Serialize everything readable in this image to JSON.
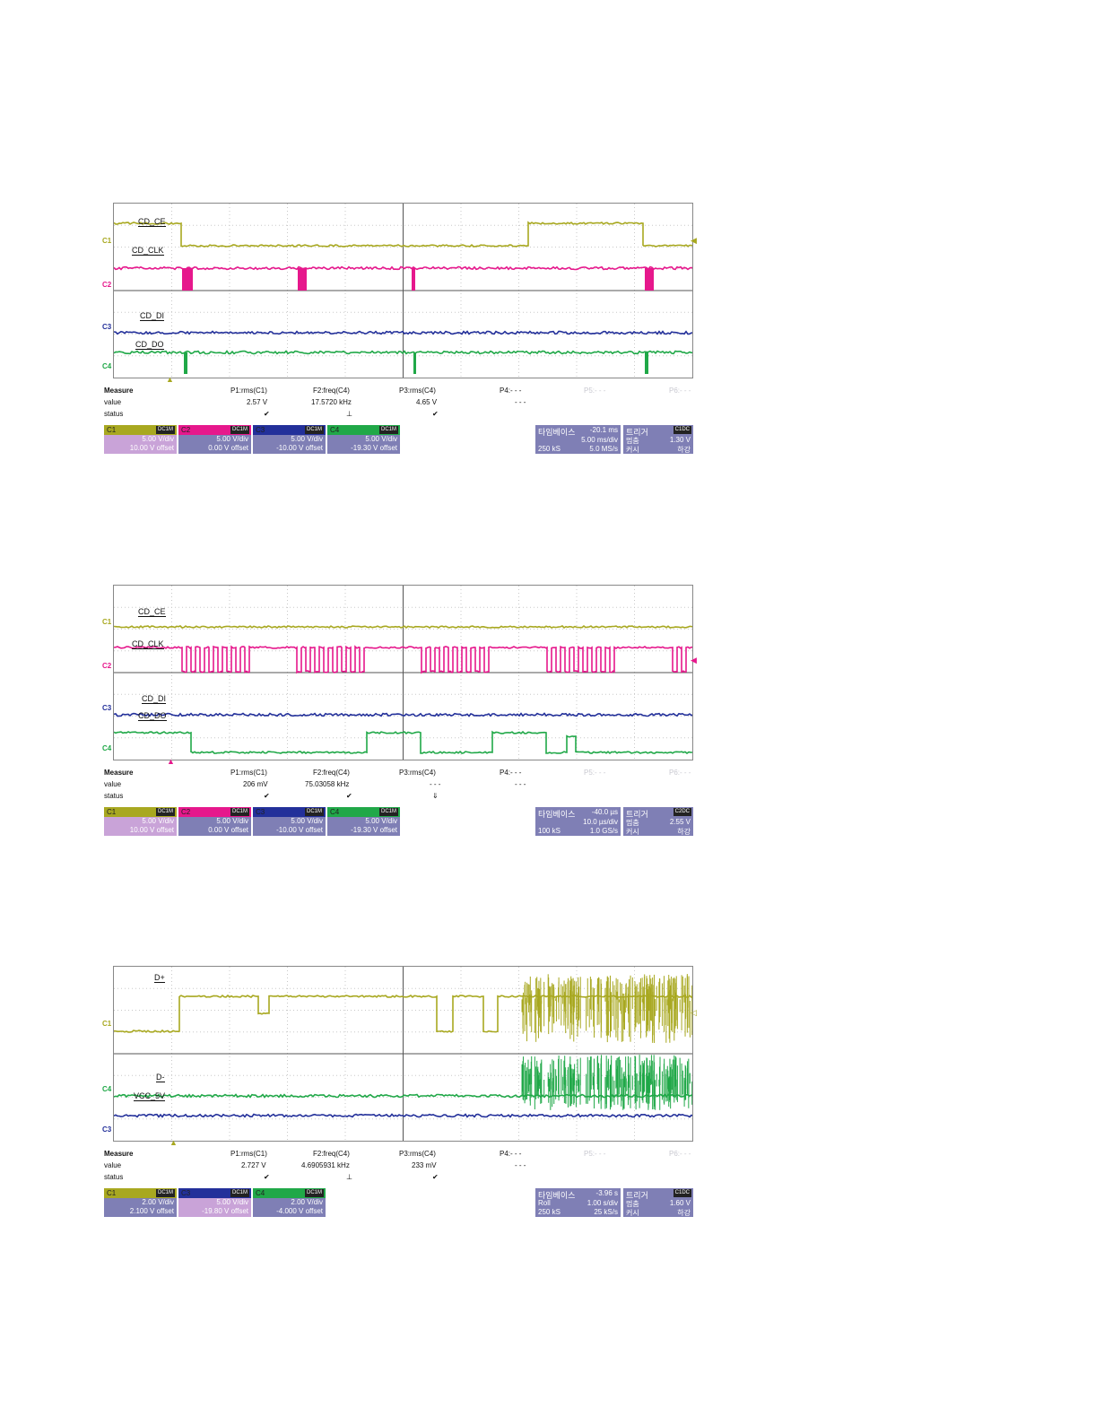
{
  "panels": [
    {
      "signals": [
        {
          "ch": "C1",
          "label": "CD_CE",
          "color": "#a8a820"
        },
        {
          "ch": "C2",
          "label": "CD_CLK",
          "color": "#e6188c"
        },
        {
          "ch": "C3",
          "label": "CD_DI",
          "color": "#23309a"
        },
        {
          "ch": "C4",
          "label": "CD_DO",
          "color": "#20a848"
        }
      ],
      "measure": {
        "header": [
          "Measure",
          "P1:rms(C1)",
          "F2:freq(C4)",
          "P3:rms(C4)",
          "P4:- - -",
          "P5:- - -",
          "P6:- - -"
        ],
        "value": [
          "value",
          "2.57 V",
          "17.5720 kHz",
          "4.65 V",
          "- - -",
          "",
          ""
        ],
        "status": [
          "status",
          "✔",
          "⊥",
          "✔",
          "",
          "",
          ""
        ]
      },
      "channels": [
        {
          "name": "C1",
          "coupling": "DC1M",
          "vdiv": "5.00 V/div",
          "offset": "10.00 V offset",
          "color": "#a8a820"
        },
        {
          "name": "C2",
          "coupling": "DC1M",
          "vdiv": "5.00 V/div",
          "offset": "0.00 V offset",
          "color": "#e6188c"
        },
        {
          "name": "C3",
          "coupling": "DC1M",
          "vdiv": "5.00 V/div",
          "offset": "-10.00 V offset",
          "color": "#23309a"
        },
        {
          "name": "C4",
          "coupling": "DC1M",
          "vdiv": "5.00 V/div",
          "offset": "-19.30 V offset",
          "color": "#20a848"
        }
      ],
      "timebase": {
        "title": "타임베이스",
        "delay": "-20.1 ms",
        "tdiv": "5.00 ms/div",
        "samples": "250 kS",
        "rate": "5.0 MS/s"
      },
      "trigger": {
        "title": "트리거",
        "coupling": "C1DC",
        "mode_label": "멈춤",
        "level": "1.30 V",
        "edge_label": "커시",
        "edge": "하강"
      }
    },
    {
      "signals": [
        {
          "ch": "C1",
          "label": "CD_CE",
          "color": "#a8a820"
        },
        {
          "ch": "C2",
          "label": "CD_CLK",
          "color": "#e6188c"
        },
        {
          "ch": "C3",
          "label": "CD_DI",
          "color": "#23309a"
        },
        {
          "ch": "C4",
          "label": "CD_DO",
          "color": "#20a848"
        }
      ],
      "measure": {
        "header": [
          "Measure",
          "P1:rms(C1)",
          "F2:freq(C4)",
          "P3:rms(C4)",
          "P4:- - -",
          "P5:- - -",
          "P6:- - -"
        ],
        "value": [
          "value",
          "206 mV",
          "75.03058 kHz",
          "- - -",
          "- - -",
          "",
          ""
        ],
        "status": [
          "status",
          "✔",
          "✔",
          "⇓",
          "",
          "",
          ""
        ]
      },
      "channels": [
        {
          "name": "C1",
          "coupling": "DC1M",
          "vdiv": "5.00 V/div",
          "offset": "10.00 V offset",
          "color": "#a8a820"
        },
        {
          "name": "C2",
          "coupling": "DC1M",
          "vdiv": "5.00 V/div",
          "offset": "0.00 V offset",
          "color": "#e6188c"
        },
        {
          "name": "C3",
          "coupling": "DC1M",
          "vdiv": "5.00 V/div",
          "offset": "-10.00 V offset",
          "color": "#23309a"
        },
        {
          "name": "C4",
          "coupling": "DC1M",
          "vdiv": "5.00 V/div",
          "offset": "-19.30 V offset",
          "color": "#20a848"
        }
      ],
      "timebase": {
        "title": "타임베이스",
        "delay": "-40.0 µs",
        "tdiv": "10.0 µs/div",
        "samples": "100 kS",
        "rate": "1.0 GS/s"
      },
      "trigger": {
        "title": "트리거",
        "coupling": "C2DC",
        "mode_label": "멈춤",
        "level": "2.55 V",
        "edge_label": "커시",
        "edge": "하강"
      }
    },
    {
      "signals": [
        {
          "ch": "C1",
          "label": "D+",
          "color": "#a8a820"
        },
        {
          "ch": "C4",
          "label": "D-",
          "color": "#20a848"
        },
        {
          "ch": "C3",
          "label": "VCC_5V",
          "color": "#23309a"
        }
      ],
      "measure": {
        "header": [
          "Measure",
          "P1:rms(C1)",
          "F2:freq(C4)",
          "P3:rms(C4)",
          "P4:- - -",
          "P5:- - -",
          "P6:- - -"
        ],
        "value": [
          "value",
          "2.727 V",
          "4.6905931 kHz",
          "233 mV",
          "- - -",
          "",
          ""
        ],
        "status": [
          "status",
          "✔",
          "⊥",
          "✔",
          "",
          "",
          ""
        ]
      },
      "channels": [
        {
          "name": "C1",
          "coupling": "DC1M",
          "vdiv": "2.00 V/div",
          "offset": "2.100 V offset",
          "color": "#a8a820"
        },
        {
          "name": "C3",
          "coupling": "DC1M",
          "vdiv": "5.00 V/div",
          "offset": "-19.80 V offset",
          "color": "#23309a"
        },
        {
          "name": "C4",
          "coupling": "DC1M",
          "vdiv": "2.00 V/div",
          "offset": "-4.000 V offset",
          "color": "#20a848"
        }
      ],
      "timebase": {
        "title": "타임베이스",
        "delay": "-3.96 s",
        "tdiv": "1.00 s/div",
        "samples": "250 kS",
        "rate": "25 kS/s",
        "mode": "Roll"
      },
      "trigger": {
        "title": "트리거",
        "coupling": "C1DC",
        "mode_label": "멈춤",
        "level": "1.60 V",
        "edge_label": "커시",
        "edge": "하강"
      }
    }
  ]
}
